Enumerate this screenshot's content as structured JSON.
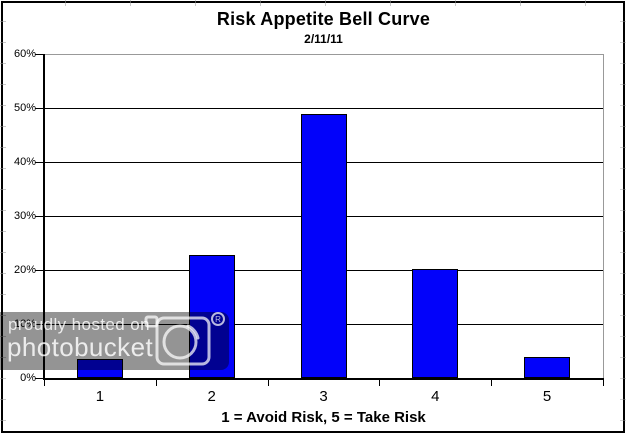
{
  "chart_data": {
    "type": "bar",
    "title": "Risk Appetite Bell Curve",
    "subtitle": "2/11/11",
    "xlabel": "1 = Avoid Risk, 5 = Take Risk",
    "ylabel": "",
    "categories": [
      "1",
      "2",
      "3",
      "4",
      "5"
    ],
    "values": [
      3.5,
      22.8,
      48.9,
      20.2,
      3.9
    ],
    "ylim": [
      0,
      60
    ],
    "ytick_step": 10,
    "ytick_labels": [
      "0%",
      "10%",
      "20%",
      "30%",
      "40%",
      "50%",
      "60%"
    ],
    "grid": true,
    "legend": "none",
    "bar_color": "#0202fa",
    "bar_border_color": "#000000",
    "gridline_color": "#000000",
    "plot_border_color": "#999999"
  },
  "watermark": {
    "line1": "proudly hosted on",
    "line2": "photobucket",
    "registered_mark": "®",
    "camera_icon": "camera-icon",
    "band_color": "rgba(0,0,0,0.42)",
    "text_color": "rgba(255,255,255,0.82)"
  }
}
